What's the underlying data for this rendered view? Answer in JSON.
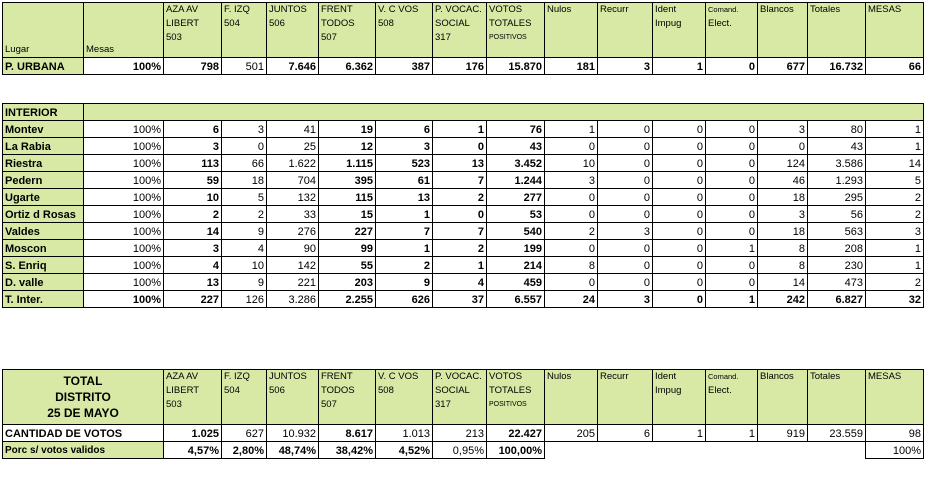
{
  "header_cols": [
    "Lugar",
    "Mesas",
    "AZA AV LIBERT 503",
    "F. IZQ 504",
    "JUNTOS 506",
    "FRENT TODOS 507",
    "V. C VOS 508",
    "P. VOCAC. SOCIAL 317",
    "VOTOS TOTALES POSITIVOS",
    "Nulos",
    "Recurr",
    "Ident Impug",
    "Comand. Elect.",
    "Blancos",
    "Totales",
    "MESAS"
  ],
  "header": {
    "lugar": "Lugar",
    "mesas": "Mesas",
    "c1": [
      "AZA AV",
      "LIBERT",
      "503"
    ],
    "c2": [
      "F. IZQ",
      "504"
    ],
    "c3": [
      "JUNTOS",
      "506"
    ],
    "c4": [
      "FRENT",
      "TODOS",
      "507"
    ],
    "c5": [
      "V. C VOS",
      "508"
    ],
    "c6": [
      "P. VOCAC.",
      "SOCIAL",
      "317"
    ],
    "c7": [
      "VOTOS",
      "TOTALES",
      "POSITIVOS"
    ],
    "nulos": "Nulos",
    "recurr": "Recurr",
    "ident": [
      "Ident",
      "Impug"
    ],
    "comand": [
      "Comand.",
      "Elect."
    ],
    "blancos": "Blancos",
    "totales": "Totales",
    "mesas2": "MESAS"
  },
  "urbana": [
    "P. URBANA",
    "100%",
    "798",
    "501",
    "7.646",
    "6.362",
    "387",
    "176",
    "15.870",
    "181",
    "3",
    "1",
    "0",
    "677",
    "16.732",
    "66"
  ],
  "interior_title": "INTERIOR",
  "interior_rows": [
    [
      "Montev",
      "100%",
      "6",
      "3",
      "41",
      "19",
      "6",
      "1",
      "76",
      "1",
      "0",
      "0",
      "0",
      "3",
      "80",
      "1"
    ],
    [
      "La Rabia",
      "100%",
      "3",
      "0",
      "25",
      "12",
      "3",
      "0",
      "43",
      "0",
      "0",
      "0",
      "0",
      "0",
      "43",
      "1"
    ],
    [
      "Riestra",
      "100%",
      "113",
      "66",
      "1.622",
      "1.115",
      "523",
      "13",
      "3.452",
      "10",
      "0",
      "0",
      "0",
      "124",
      "3.586",
      "14"
    ],
    [
      "Pedern",
      "100%",
      "59",
      "18",
      "704",
      "395",
      "61",
      "7",
      "1.244",
      "3",
      "0",
      "0",
      "0",
      "46",
      "1.293",
      "5"
    ],
    [
      "Ugarte",
      "100%",
      "10",
      "5",
      "132",
      "115",
      "13",
      "2",
      "277",
      "0",
      "0",
      "0",
      "0",
      "18",
      "295",
      "2"
    ],
    [
      "Ortiz d Rosas",
      "100%",
      "2",
      "2",
      "33",
      "15",
      "1",
      "0",
      "53",
      "0",
      "0",
      "0",
      "0",
      "3",
      "56",
      "2"
    ],
    [
      "Valdes",
      "100%",
      "14",
      "9",
      "276",
      "227",
      "7",
      "7",
      "540",
      "2",
      "3",
      "0",
      "0",
      "18",
      "563",
      "3"
    ],
    [
      "Moscon",
      "100%",
      "3",
      "4",
      "90",
      "99",
      "1",
      "2",
      "199",
      "0",
      "0",
      "0",
      "1",
      "8",
      "208",
      "1"
    ],
    [
      "S. Enriq",
      "100%",
      "4",
      "10",
      "142",
      "55",
      "2",
      "1",
      "214",
      "8",
      "0",
      "0",
      "0",
      "8",
      "230",
      "1"
    ],
    [
      "D. valle",
      "100%",
      "13",
      "9",
      "221",
      "203",
      "9",
      "4",
      "459",
      "0",
      "0",
      "0",
      "0",
      "14",
      "473",
      "2"
    ]
  ],
  "interior_total": [
    "T. Inter.",
    "100%",
    "227",
    "126",
    "3.286",
    "2.255",
    "626",
    "37",
    "6.557",
    "24",
    "3",
    "0",
    "1",
    "242",
    "6.827",
    "32"
  ],
  "total_title": [
    "TOTAL",
    "DISTRITO",
    "25 DE MAYO"
  ],
  "cantidad": [
    "CANTIDAD DE VOTOS",
    "1.025",
    "627",
    "10.932",
    "8.617",
    "1.013",
    "213",
    "22.427",
    "205",
    "6",
    "1",
    "1",
    "919",
    "23.559",
    "98"
  ],
  "porc": [
    "Porc s/ votos validos",
    "4,57%",
    "2,80%",
    "48,74%",
    "38,42%",
    "4,52%",
    "0,95%",
    "100,00%",
    "100%"
  ]
}
